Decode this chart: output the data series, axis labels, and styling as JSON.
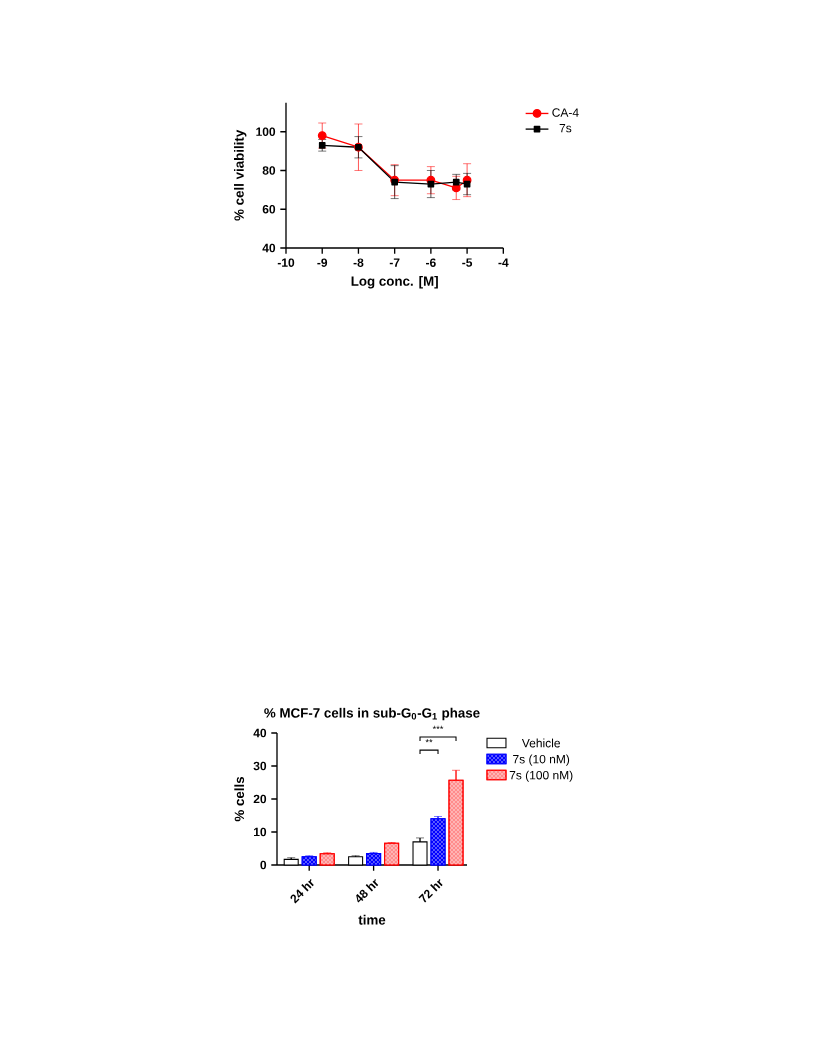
{
  "chart_data": [
    {
      "type": "line",
      "xlabel": "Log conc. [M]",
      "ylabel": "% cell viability",
      "x": [
        -9,
        -8,
        -7,
        -6,
        -5.3,
        -5
      ],
      "xlim": [
        -10,
        -4
      ],
      "xticks": [
        -10,
        -9,
        -8,
        -7,
        -6,
        -5,
        -4
      ],
      "ylim": [
        40,
        115
      ],
      "yticks": [
        40,
        60,
        80,
        100
      ],
      "legend": "top right",
      "grid": false,
      "series": [
        {
          "name": "CA-4",
          "color": "#ff0000",
          "marker": "circle",
          "values": [
            98,
            92,
            75,
            75,
            71,
            75
          ],
          "errors": [
            6.5,
            12,
            8,
            7,
            6,
            8.5
          ]
        },
        {
          "name": "7s",
          "color": "#000000",
          "marker": "square",
          "values": [
            93,
            92,
            74,
            73,
            74,
            73
          ],
          "errors": [
            3,
            5.5,
            8.5,
            7,
            4,
            5.5
          ]
        }
      ]
    },
    {
      "type": "bar",
      "title": "% MCF-7 cells in sub-G$_{0}$-G$_{1}$ phase",
      "xlabel": "time",
      "ylabel": "% cells",
      "categories": [
        "24 hr",
        "48 hr",
        "72 hr"
      ],
      "ylim": [
        0,
        40
      ],
      "yticks": [
        0,
        10,
        20,
        30,
        40
      ],
      "legend": "top right",
      "grid": false,
      "annotations": [
        "**",
        "***"
      ],
      "series": [
        {
          "name": "Vehicle",
          "color": "#000000",
          "values": [
            1.7,
            2.5,
            7.0
          ],
          "errors": [
            0.5,
            0.3,
            1.2
          ]
        },
        {
          "name": "7s (10 nM)",
          "color": "#0000ff",
          "values": [
            2.5,
            3.5,
            14.0
          ],
          "errors": [
            0.3,
            0.3,
            0.7
          ]
        },
        {
          "name": "7s (100 nM)",
          "color": "#ff0000",
          "values": [
            3.4,
            6.6,
            25.7
          ],
          "errors": [
            0.3,
            0.2,
            3.0
          ]
        }
      ]
    }
  ]
}
